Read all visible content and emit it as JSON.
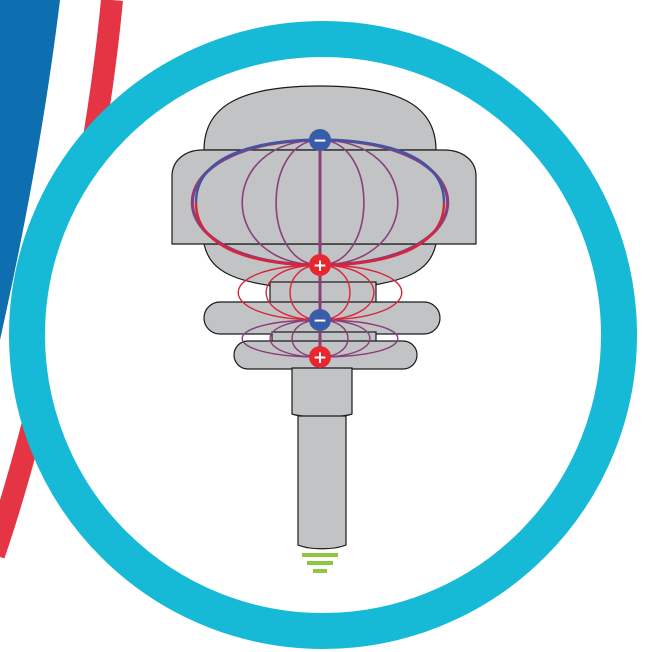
{
  "colors": {
    "background": "#ffffff",
    "swoosh_blue": "#0d6fb0",
    "swoosh_red": "#e53545",
    "ring": "#17bad6",
    "antenna_body": "#c2c3c5",
    "outline": "#1a1a1a",
    "negative_charge": "#3a5ba8",
    "positive_charge": "#e8262f",
    "field_blue": "#3f55a5",
    "field_purple": "#8a3f7a",
    "field_red": "#d8253a",
    "ground": "#8dc63f"
  },
  "charges": [
    {
      "sign": "negative",
      "symbol": "−"
    },
    {
      "sign": "positive",
      "symbol": "+"
    },
    {
      "sign": "negative",
      "symbol": "−"
    },
    {
      "sign": "positive",
      "symbol": "+"
    }
  ],
  "icons": {
    "ground": "ground-symbol-icon"
  }
}
